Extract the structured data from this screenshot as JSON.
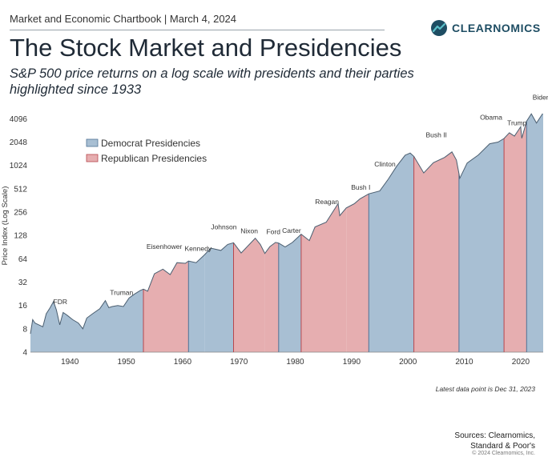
{
  "header": {
    "chartbook": "Market and Economic Chartbook | March 4, 2024",
    "logo_text": "CLEARNOMICS",
    "title": "The Stock Market and Presidencies",
    "subtitle": "S&P 500 price returns on a log scale with presidents and their parties highlighted since 1933"
  },
  "footer": {
    "footnote": "Latest data point is Dec 31, 2023",
    "sources_line1": "Sources: Clearnomics,",
    "sources_line2": "Standard & Poor's",
    "copyright": "© 2024 Clearnomics, Inc."
  },
  "colors": {
    "democrat_fill": "#a8bfd3",
    "democrat_line": "#4f7395",
    "republican_fill": "#e6aeb0",
    "republican_line": "#b8474d"
  },
  "chart_data": {
    "type": "area",
    "title": "The Stock Market and Presidencies",
    "ylabel": "Price Index (Log Scale)",
    "yscale": "log2",
    "ylim": [
      4,
      5000
    ],
    "xlim": [
      1933,
      2024
    ],
    "xticks": [
      1940,
      1950,
      1960,
      1970,
      1980,
      1990,
      2000,
      2010,
      2020
    ],
    "yticks": [
      4,
      8,
      16,
      32,
      64,
      128,
      256,
      512,
      1024,
      2048,
      4096
    ],
    "legend": [
      {
        "label": "Democrat Presidencies",
        "party": "D"
      },
      {
        "label": "Republican Presidencies",
        "party": "R"
      }
    ],
    "presidencies": [
      {
        "name": "FDR",
        "party": "D",
        "start": 1933,
        "end": 1945.3
      },
      {
        "name": "Truman",
        "party": "D",
        "start": 1945.3,
        "end": 1953.05
      },
      {
        "name": "Eisenhower",
        "party": "R",
        "start": 1953.05,
        "end": 1961.05
      },
      {
        "name": "Kennedy",
        "party": "D",
        "start": 1961.05,
        "end": 1963.9
      },
      {
        "name": "Johnson",
        "party": "D",
        "start": 1963.9,
        "end": 1969.05
      },
      {
        "name": "Nixon",
        "party": "R",
        "start": 1969.05,
        "end": 1974.6
      },
      {
        "name": "Ford",
        "party": "R",
        "start": 1974.6,
        "end": 1977.05
      },
      {
        "name": "Carter",
        "party": "D",
        "start": 1977.05,
        "end": 1981.05
      },
      {
        "name": "Reagan",
        "party": "R",
        "start": 1981.05,
        "end": 1989.05
      },
      {
        "name": "Bush I",
        "party": "R",
        "start": 1989.05,
        "end": 1993.05
      },
      {
        "name": "Clinton",
        "party": "D",
        "start": 1993.05,
        "end": 2001.05
      },
      {
        "name": "Bush II",
        "party": "R",
        "start": 2001.05,
        "end": 2009.05
      },
      {
        "name": "Obama",
        "party": "D",
        "start": 2009.05,
        "end": 2017.05
      },
      {
        "name": "Trump",
        "party": "R",
        "start": 2017.05,
        "end": 2021.05
      },
      {
        "name": "Biden",
        "party": "D",
        "start": 2021.05,
        "end": 2024
      }
    ],
    "series": [
      {
        "name": "S&P 500 price index",
        "points": [
          [
            1933.0,
            6.9
          ],
          [
            1933.4,
            10.5
          ],
          [
            1933.8,
            9.5
          ],
          [
            1934.5,
            9.0
          ],
          [
            1935.2,
            8.5
          ],
          [
            1935.8,
            12.5
          ],
          [
            1936.5,
            15.0
          ],
          [
            1937.1,
            18.0
          ],
          [
            1937.6,
            14.0
          ],
          [
            1938.2,
            9.0
          ],
          [
            1938.8,
            13.0
          ],
          [
            1939.5,
            12.0
          ],
          [
            1940.5,
            10.5
          ],
          [
            1941.5,
            9.5
          ],
          [
            1942.3,
            8.0
          ],
          [
            1943.0,
            11.0
          ],
          [
            1944.0,
            12.5
          ],
          [
            1945.3,
            14.5
          ],
          [
            1946.3,
            18.5
          ],
          [
            1946.9,
            15.0
          ],
          [
            1947.5,
            15.5
          ],
          [
            1948.5,
            16.0
          ],
          [
            1949.5,
            15.5
          ],
          [
            1950.5,
            20.0
          ],
          [
            1951.5,
            22.5
          ],
          [
            1952.5,
            25.0
          ],
          [
            1953.05,
            26.0
          ],
          [
            1953.8,
            24.5
          ],
          [
            1955.0,
            41.0
          ],
          [
            1956.5,
            47.0
          ],
          [
            1957.8,
            40.0
          ],
          [
            1959.0,
            57.0
          ],
          [
            1960.5,
            56.0
          ],
          [
            1961.05,
            60.0
          ],
          [
            1962.4,
            57.0
          ],
          [
            1963.9,
            72.0
          ],
          [
            1965.0,
            88.0
          ],
          [
            1966.8,
            82.0
          ],
          [
            1968.0,
            98.0
          ],
          [
            1969.05,
            103.0
          ],
          [
            1970.4,
            76.0
          ],
          [
            1972.9,
            118.0
          ],
          [
            1973.8,
            98.0
          ],
          [
            1974.6,
            75.0
          ],
          [
            1975.5,
            92.0
          ],
          [
            1976.5,
            104.0
          ],
          [
            1977.05,
            102.0
          ],
          [
            1978.2,
            91.0
          ],
          [
            1979.5,
            104.0
          ],
          [
            1980.5,
            122.0
          ],
          [
            1981.05,
            133.0
          ],
          [
            1982.5,
            110.0
          ],
          [
            1983.5,
            165.0
          ],
          [
            1985.5,
            190.0
          ],
          [
            1987.6,
            330.0
          ],
          [
            1987.9,
            230.0
          ],
          [
            1989.05,
            290.0
          ],
          [
            1990.5,
            330.0
          ],
          [
            1991.5,
            380.0
          ],
          [
            1993.05,
            440.0
          ],
          [
            1995.0,
            480.0
          ],
          [
            1996.5,
            680.0
          ],
          [
            1998.0,
            1000.0
          ],
          [
            1999.5,
            1390.0
          ],
          [
            2000.4,
            1480.0
          ],
          [
            2001.05,
            1340.0
          ],
          [
            2002.8,
            820.0
          ],
          [
            2004.5,
            1110.0
          ],
          [
            2006.5,
            1300.0
          ],
          [
            2007.8,
            1530.0
          ],
          [
            2008.6,
            1200.0
          ],
          [
            2009.05,
            800.0
          ],
          [
            2009.2,
            700.0
          ],
          [
            2010.5,
            1100.0
          ],
          [
            2012.5,
            1400.0
          ],
          [
            2014.5,
            1950.0
          ],
          [
            2016.0,
            2050.0
          ],
          [
            2017.05,
            2280.0
          ],
          [
            2018.0,
            2700.0
          ],
          [
            2018.9,
            2450.0
          ],
          [
            2020.0,
            3230.0
          ],
          [
            2020.2,
            2300.0
          ],
          [
            2021.05,
            3800.0
          ],
          [
            2021.9,
            4750.0
          ],
          [
            2022.8,
            3600.0
          ],
          [
            2023.9,
            4770.0
          ]
        ]
      }
    ]
  }
}
